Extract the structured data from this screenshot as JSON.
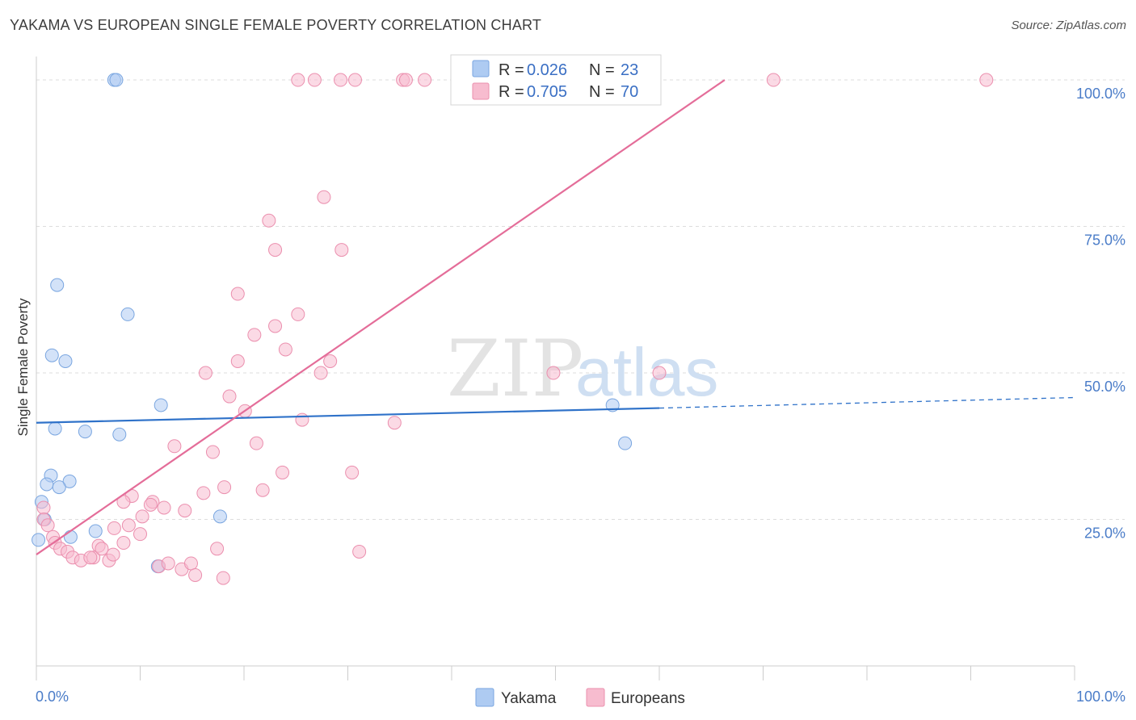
{
  "title": "YAKAMA VS EUROPEAN SINGLE FEMALE POVERTY CORRELATION CHART",
  "source": "Source: ZipAtlas.com",
  "watermark": {
    "zip": "ZIP",
    "atlas": "atlas"
  },
  "colors": {
    "yakama_fill": "#aecbf2",
    "yakama_stroke": "#7aa6e0",
    "yakama_line": "#2f72c9",
    "europeans_fill": "#f7bccf",
    "europeans_stroke": "#eb8fae",
    "europeans_line": "#e46d99",
    "grid": "#dddddd",
    "tick_label": "#4a7cc8"
  },
  "legend": {
    "r_label": "R =",
    "n_label": "N =",
    "rows": [
      {
        "series": "Yakama",
        "r": "0.026",
        "n": "23"
      },
      {
        "series": "Europeans",
        "r": "0.705",
        "n": "70"
      }
    ]
  },
  "chart_data": {
    "type": "scatter",
    "title": "YAKAMA VS EUROPEAN SINGLE FEMALE POVERTY CORRELATION CHART",
    "xlabel": "",
    "ylabel": "Single Female Poverty",
    "xlim": [
      0,
      100
    ],
    "ylim": [
      0,
      104
    ],
    "x_tick_labels": [
      "0.0%",
      "100.0%"
    ],
    "y_ticks": [
      25,
      50,
      75,
      100
    ],
    "y_tick_labels": [
      "25.0%",
      "50.0%",
      "75.0%",
      "100.0%"
    ],
    "grid": true,
    "legend_position": "top-center",
    "series": [
      {
        "name": "Yakama",
        "points": [
          [
            7.5,
            100
          ],
          [
            7.7,
            100
          ],
          [
            2.0,
            65
          ],
          [
            8.8,
            60
          ],
          [
            1.5,
            53
          ],
          [
            2.8,
            52
          ],
          [
            12.0,
            44.5
          ],
          [
            1.8,
            40.5
          ],
          [
            4.7,
            40
          ],
          [
            8.0,
            39.5
          ],
          [
            55.5,
            44.5
          ],
          [
            56.7,
            38
          ],
          [
            1.4,
            32.5
          ],
          [
            1.0,
            31
          ],
          [
            3.2,
            31.5
          ],
          [
            2.2,
            30.5
          ],
          [
            0.5,
            28
          ],
          [
            0.8,
            25
          ],
          [
            3.3,
            22
          ],
          [
            5.7,
            23
          ],
          [
            17.7,
            25.5
          ],
          [
            11.7,
            17
          ],
          [
            0.2,
            21.5
          ]
        ],
        "trend": {
          "x": [
            0,
            60
          ],
          "y": [
            41.5,
            44
          ]
        },
        "trend_extension": {
          "x": [
            60,
            100
          ],
          "y": [
            44,
            45.8
          ]
        }
      },
      {
        "name": "Europeans",
        "points": [
          [
            25.2,
            100
          ],
          [
            26.8,
            100
          ],
          [
            29.3,
            100
          ],
          [
            30.7,
            100
          ],
          [
            35.3,
            100
          ],
          [
            35.6,
            100
          ],
          [
            37.4,
            100
          ],
          [
            71.0,
            100
          ],
          [
            91.5,
            100
          ],
          [
            27.7,
            80
          ],
          [
            22.4,
            76
          ],
          [
            23.0,
            71
          ],
          [
            29.4,
            71
          ],
          [
            19.4,
            63.5
          ],
          [
            25.2,
            60
          ],
          [
            21.0,
            56.5
          ],
          [
            23.0,
            58
          ],
          [
            24.0,
            54
          ],
          [
            19.4,
            52
          ],
          [
            28.3,
            52
          ],
          [
            16.3,
            50
          ],
          [
            27.4,
            50
          ],
          [
            49.8,
            50
          ],
          [
            60.0,
            50
          ],
          [
            18.6,
            46
          ],
          [
            20.1,
            43.5
          ],
          [
            25.6,
            42
          ],
          [
            34.5,
            41.5
          ],
          [
            21.2,
            38
          ],
          [
            13.3,
            37.5
          ],
          [
            17.0,
            36.5
          ],
          [
            23.7,
            33
          ],
          [
            30.4,
            33
          ],
          [
            18.1,
            30.5
          ],
          [
            21.8,
            30
          ],
          [
            16.1,
            29.5
          ],
          [
            9.2,
            29
          ],
          [
            8.4,
            28
          ],
          [
            11.2,
            28
          ],
          [
            11.0,
            27.5
          ],
          [
            12.3,
            27
          ],
          [
            14.3,
            26.5
          ],
          [
            10.2,
            25.5
          ],
          [
            8.9,
            24
          ],
          [
            7.5,
            23.5
          ],
          [
            0.7,
            27
          ],
          [
            0.7,
            25
          ],
          [
            1.1,
            24
          ],
          [
            1.6,
            22
          ],
          [
            1.8,
            21
          ],
          [
            2.3,
            20
          ],
          [
            3.0,
            19.5
          ],
          [
            3.5,
            18.5
          ],
          [
            4.3,
            18
          ],
          [
            5.5,
            18.5
          ],
          [
            6.0,
            20.5
          ],
          [
            6.3,
            20
          ],
          [
            7.0,
            18
          ],
          [
            7.4,
            19
          ],
          [
            10.0,
            22.5
          ],
          [
            8.4,
            21
          ],
          [
            11.8,
            17
          ],
          [
            12.7,
            17.5
          ],
          [
            14.0,
            16.5
          ],
          [
            14.9,
            17.5
          ],
          [
            15.3,
            15.5
          ],
          [
            17.4,
            20
          ],
          [
            18.0,
            15
          ],
          [
            31.1,
            19.5
          ],
          [
            5.2,
            18.5
          ]
        ],
        "trend": {
          "x": [
            0,
            66.3
          ],
          "y": [
            19,
            100
          ]
        }
      }
    ]
  },
  "bottom_legend": [
    {
      "series": "Yakama",
      "label": "Yakama"
    },
    {
      "series": "Europeans",
      "label": "Europeans"
    }
  ]
}
